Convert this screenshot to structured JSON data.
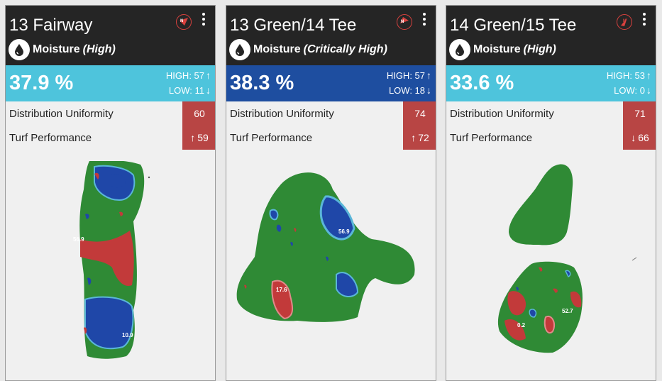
{
  "cards": [
    {
      "title": "13 Fairway",
      "compass_icon": "compass-icon",
      "menu_icon": "kebab-menu-icon",
      "moisture_label": "Moisture",
      "moisture_status": "(High)",
      "percent": "37.9 %",
      "high": "HIGH: 57",
      "low": "LOW: 11",
      "metric_color": "#4ec4dc",
      "rows": [
        {
          "label": "Distribution Uniformity",
          "value": "60",
          "trend": ""
        },
        {
          "label": "Turf Performance",
          "value": "59",
          "trend": "up"
        }
      ],
      "map_labels": [
        "56.9",
        "10.9"
      ]
    },
    {
      "title": "13 Green/14 Tee",
      "compass_icon": "compass-icon",
      "menu_icon": "kebab-menu-icon",
      "moisture_label": "Moisture",
      "moisture_status": "(Critically High)",
      "percent": "38.3 %",
      "high": "HIGH: 57",
      "low": "LOW: 18",
      "metric_color": "#1e4ea0",
      "rows": [
        {
          "label": "Distribution Uniformity",
          "value": "74",
          "trend": ""
        },
        {
          "label": "Turf Performance",
          "value": "72",
          "trend": "up"
        }
      ],
      "map_labels": [
        "56.9",
        "17.6"
      ]
    },
    {
      "title": "14 Green/15 Tee",
      "compass_icon": "compass-icon",
      "menu_icon": "kebab-menu-icon",
      "moisture_label": "Moisture",
      "moisture_status": "(High)",
      "percent": "33.6 %",
      "high": "HIGH: 53",
      "low": "LOW: 0",
      "metric_color": "#4ec4dc",
      "rows": [
        {
          "label": "Distribution Uniformity",
          "value": "71",
          "trend": ""
        },
        {
          "label": "Turf Performance",
          "value": "66",
          "trend": "down"
        }
      ],
      "map_labels": [
        "52.7",
        "0.2"
      ]
    }
  ],
  "colors": {
    "header": "#252525",
    "badge": "#b84544",
    "turf_green": "#2f8a35",
    "wet_blue": "#1f47a8",
    "dry_red": "#c23a3a",
    "edge_cyan": "#5ab6d8"
  }
}
